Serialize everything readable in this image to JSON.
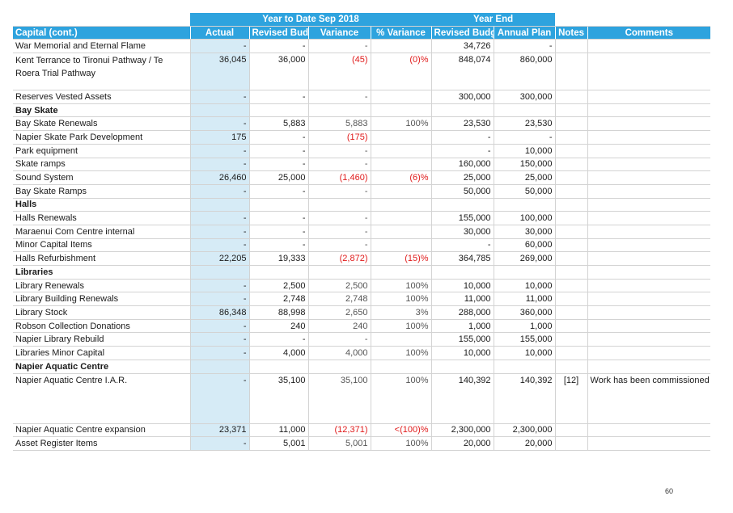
{
  "table": {
    "group_headers": {
      "ytd": "Year to Date Sep 2018",
      "year_end": "Year End"
    },
    "columns": {
      "capital": "Capital (cont.)",
      "actual": "Actual",
      "revised_budget": "Revised Budget",
      "variance": "Variance",
      "pct_variance": "% Variance",
      "ye_revised_budget": "Revised Budget",
      "annual_plan": "Annual Plan",
      "notes": "Notes",
      "comments": "Comments"
    },
    "rows": [
      {
        "desc": "War Memorial and Eternal Flame",
        "actual": "-",
        "rb": "-",
        "var": "-",
        "pct": "",
        "yerb": "34,726",
        "ap": "-",
        "notes": "",
        "comment": ""
      },
      {
        "desc": "Kent Terrance to Tironui Pathway / Te Roera Trial Pathway",
        "actual": "36,045",
        "rb": "36,000",
        "var": "(45)",
        "pct": "(0)%",
        "yerb": "848,074",
        "ap": "860,000",
        "notes": "",
        "comment": ""
      },
      {
        "desc": "Reserves Vested Assets",
        "actual": "-",
        "rb": "-",
        "var": "-",
        "pct": "",
        "yerb": "300,000",
        "ap": "300,000",
        "notes": "",
        "comment": ""
      },
      {
        "section": "Bay Skate"
      },
      {
        "desc": "Bay Skate Renewals",
        "actual": "-",
        "rb": "5,883",
        "var": "5,883",
        "pct": "100%",
        "yerb": "23,530",
        "ap": "23,530",
        "notes": "",
        "comment": ""
      },
      {
        "desc": "Napier Skate Park Development",
        "actual": "175",
        "rb": "-",
        "var": "(175)",
        "pct": "",
        "yerb": "-",
        "ap": "-",
        "notes": "",
        "comment": ""
      },
      {
        "desc": "Park equipment",
        "actual": "-",
        "rb": "-",
        "var": "-",
        "pct": "",
        "yerb": "-",
        "ap": "10,000",
        "notes": "",
        "comment": ""
      },
      {
        "desc": "Skate ramps",
        "actual": "-",
        "rb": "-",
        "var": "-",
        "pct": "",
        "yerb": "160,000",
        "ap": "150,000",
        "notes": "",
        "comment": ""
      },
      {
        "desc": "Sound System",
        "actual": "26,460",
        "rb": "25,000",
        "var": "(1,460)",
        "pct": "(6)%",
        "yerb": "25,000",
        "ap": "25,000",
        "notes": "",
        "comment": ""
      },
      {
        "desc": "Bay Skate Ramps",
        "actual": "-",
        "rb": "-",
        "var": "-",
        "pct": "",
        "yerb": "50,000",
        "ap": "50,000",
        "notes": "",
        "comment": ""
      },
      {
        "section": "Halls"
      },
      {
        "desc": "Halls Renewals",
        "actual": "-",
        "rb": "-",
        "var": "-",
        "pct": "",
        "yerb": "155,000",
        "ap": "100,000",
        "notes": "",
        "comment": ""
      },
      {
        "desc": "Maraenui Com Centre internal",
        "actual": "-",
        "rb": "-",
        "var": "-",
        "pct": "",
        "yerb": "30,000",
        "ap": "30,000",
        "notes": "",
        "comment": ""
      },
      {
        "desc": "Minor Capital Items",
        "actual": "-",
        "rb": "-",
        "var": "-",
        "pct": "",
        "yerb": "-",
        "ap": "60,000",
        "notes": "",
        "comment": ""
      },
      {
        "desc": "Halls Refurbishment",
        "actual": "22,205",
        "rb": "19,333",
        "var": "(2,872)",
        "pct": "(15)%",
        "yerb": "364,785",
        "ap": "269,000",
        "notes": "",
        "comment": ""
      },
      {
        "section": "Libraries"
      },
      {
        "desc": "Library Renewals",
        "actual": "-",
        "rb": "2,500",
        "var": "2,500",
        "pct": "100%",
        "yerb": "10,000",
        "ap": "10,000",
        "notes": "",
        "comment": ""
      },
      {
        "desc": "Library Building Renewals",
        "actual": "-",
        "rb": "2,748",
        "var": "2,748",
        "pct": "100%",
        "yerb": "11,000",
        "ap": "11,000",
        "notes": "",
        "comment": ""
      },
      {
        "desc": "Library Stock",
        "actual": "86,348",
        "rb": "88,998",
        "var": "2,650",
        "pct": "3%",
        "yerb": "288,000",
        "ap": "360,000",
        "notes": "",
        "comment": ""
      },
      {
        "desc": "Robson Collection Donations",
        "actual": "-",
        "rb": "240",
        "var": "240",
        "pct": "100%",
        "yerb": "1,000",
        "ap": "1,000",
        "notes": "",
        "comment": ""
      },
      {
        "desc": "Napier Library Rebuild",
        "actual": "-",
        "rb": "-",
        "var": "-",
        "pct": "",
        "yerb": "155,000",
        "ap": "155,000",
        "notes": "",
        "comment": ""
      },
      {
        "desc": "Libraries Minor Capital",
        "actual": "-",
        "rb": "4,000",
        "var": "4,000",
        "pct": "100%",
        "yerb": "10,000",
        "ap": "10,000",
        "notes": "",
        "comment": ""
      },
      {
        "section": "Napier Aquatic Centre"
      },
      {
        "desc": "Napier Aquatic Centre I.A.R.",
        "actual": "-",
        "rb": "35,100",
        "var": "35,100",
        "pct": "100%",
        "yerb": "140,392",
        "ap": "140,392",
        "notes": "[12]",
        "comment": "Work has been commissioned with costs expected to occur later in the financial year"
      },
      {
        "desc": "Napier Aquatic Centre expansion",
        "actual": "23,371",
        "rb": "11,000",
        "var": "(12,371)",
        "pct": "<(100)%",
        "yerb": "2,300,000",
        "ap": "2,300,000",
        "notes": "",
        "comment": ""
      },
      {
        "desc": "Asset Register Items",
        "actual": "-",
        "rb": "5,001",
        "var": "5,001",
        "pct": "100%",
        "yerb": "20,000",
        "ap": "20,000",
        "notes": "",
        "comment": ""
      }
    ]
  },
  "page_number": "60"
}
